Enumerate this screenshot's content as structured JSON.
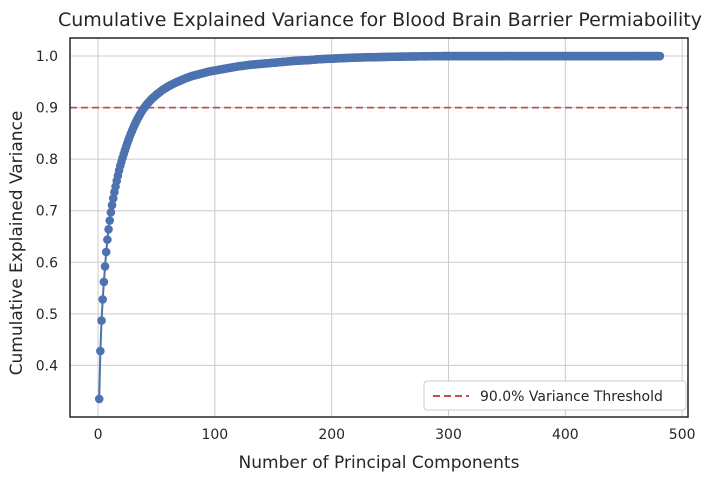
{
  "chart_data": {
    "type": "line",
    "title": "Cumulative Explained Variance for Blood Brain Barrier Permiaboility",
    "xlabel": "Number of Principal Components",
    "ylabel": "Cumulative Explained Variance",
    "xlim": [
      -24,
      505
    ],
    "ylim": [
      0.3,
      1.035
    ],
    "xticks": [
      0,
      100,
      200,
      300,
      400,
      500
    ],
    "xtick_labels": [
      "0",
      "100",
      "200",
      "300",
      "400",
      "500"
    ],
    "yticks": [
      0.4,
      0.5,
      0.6,
      0.7,
      0.8,
      0.9,
      1.0
    ],
    "ytick_labels": [
      "0.4",
      "0.5",
      "0.6",
      "0.7",
      "0.8",
      "0.9",
      "1.0"
    ],
    "grid": true,
    "legend_position": "lower-right",
    "threshold": {
      "value": 0.9,
      "label": "90.0% Variance Threshold",
      "color": "#c44e52"
    },
    "series": [
      {
        "color": "#4c72b0",
        "x": [
          1,
          2,
          3,
          4,
          5,
          6,
          7,
          8,
          9,
          10,
          11,
          12,
          13,
          14,
          15,
          16,
          17,
          18,
          19,
          20,
          22,
          24,
          26,
          28,
          30,
          32,
          34,
          36,
          38,
          40,
          42,
          44,
          46,
          48,
          50,
          55,
          60,
          65,
          70,
          75,
          80,
          85,
          90,
          95,
          100,
          110,
          120,
          130,
          140,
          150,
          160,
          170,
          180,
          190,
          200,
          220,
          240,
          260,
          280,
          300,
          320,
          340,
          360,
          380,
          400,
          420,
          440,
          460,
          481
        ],
        "y": [
          0.335,
          0.428,
          0.487,
          0.528,
          0.562,
          0.592,
          0.62,
          0.644,
          0.664,
          0.681,
          0.697,
          0.711,
          0.724,
          0.736,
          0.747,
          0.758,
          0.768,
          0.778,
          0.787,
          0.795,
          0.81,
          0.824,
          0.837,
          0.849,
          0.86,
          0.87,
          0.879,
          0.887,
          0.895,
          0.901,
          0.907,
          0.912,
          0.917,
          0.921,
          0.925,
          0.934,
          0.941,
          0.947,
          0.952,
          0.957,
          0.961,
          0.964,
          0.967,
          0.97,
          0.972,
          0.976,
          0.98,
          0.983,
          0.985,
          0.987,
          0.989,
          0.991,
          0.992,
          0.994,
          0.995,
          0.997,
          0.998,
          0.999,
          0.9995,
          1.0,
          1.0,
          1.0,
          1.0,
          1.0,
          1.0,
          1.0,
          1.0,
          1.0,
          1.0
        ]
      }
    ]
  }
}
